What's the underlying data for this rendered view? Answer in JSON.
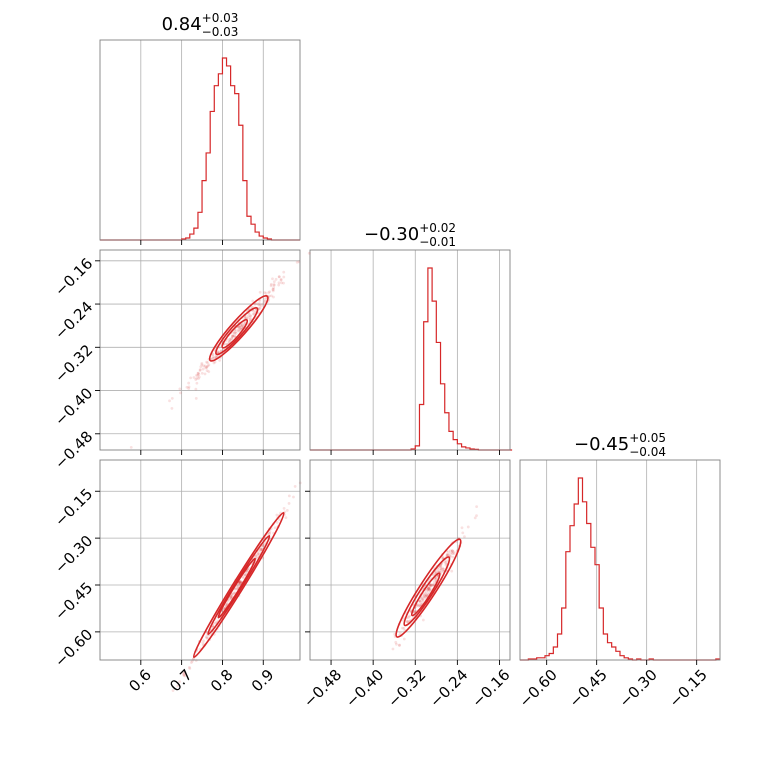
{
  "chart_data": {
    "type": "corner",
    "color": "#d62728",
    "grid": true,
    "panels": [
      {
        "id": "p00",
        "kind": "hist",
        "row": 0,
        "col": 0,
        "xlim": [
          0.5,
          0.99
        ],
        "title": {
          "value": "0.84",
          "plus": "+0.03",
          "minus": "−0.03"
        },
        "bins": {
          "start": 0.5,
          "width": 0.01,
          "heights": [
            0,
            0,
            0,
            0,
            0,
            0,
            0,
            0,
            0,
            0,
            0,
            0,
            0,
            0,
            0,
            0,
            0,
            0,
            0,
            0,
            0.005,
            0.01,
            0.03,
            0.06,
            0.14,
            0.3,
            0.44,
            0.65,
            0.78,
            0.84,
            0.92,
            0.88,
            0.78,
            0.74,
            0.58,
            0.3,
            0.12,
            0.08,
            0.04,
            0.02,
            0.01,
            0.005,
            0,
            0,
            0,
            0,
            0,
            0,
            0
          ]
        },
        "xgrid": [
          0.6,
          0.7,
          0.8,
          0.9
        ]
      },
      {
        "id": "p11",
        "kind": "hist",
        "row": 1,
        "col": 1,
        "xlim": [
          -0.52,
          -0.14
        ],
        "title": {
          "value": "−0.30",
          "plus": "+0.02",
          "minus": "−0.01"
        },
        "bins": {
          "start": -0.52,
          "width": 0.008,
          "heights": [
            0,
            0,
            0,
            0,
            0,
            0,
            0,
            0,
            0,
            0,
            0,
            0,
            0,
            0,
            0,
            0,
            0,
            0,
            0,
            0,
            0,
            0,
            0,
            0,
            0.005,
            0.02,
            0.22,
            0.62,
            0.88,
            0.72,
            0.52,
            0.32,
            0.18,
            0.09,
            0.05,
            0.03,
            0.015,
            0.01,
            0.005,
            0.003,
            0,
            0,
            0,
            0,
            0,
            0,
            0,
            0
          ]
        },
        "xgrid": [
          -0.48,
          -0.4,
          -0.32,
          -0.24,
          -0.16
        ]
      },
      {
        "id": "p22",
        "kind": "hist",
        "row": 2,
        "col": 2,
        "xlim": [
          -0.68,
          -0.08
        ],
        "title": {
          "value": "−0.45",
          "plus": "+0.05",
          "minus": "−0.04"
        },
        "bins": {
          "start": -0.68,
          "width": 0.0125,
          "heights": [
            0,
            0,
            0.005,
            0.005,
            0.01,
            0.01,
            0.02,
            0.03,
            0.06,
            0.12,
            0.24,
            0.5,
            0.62,
            0.72,
            0.84,
            0.73,
            0.63,
            0.52,
            0.44,
            0.24,
            0.12,
            0.08,
            0.06,
            0.04,
            0.02,
            0.01,
            0.005,
            0,
            0.005,
            0,
            0,
            0.005,
            0,
            0,
            0,
            0,
            0,
            0,
            0,
            0,
            0,
            0,
            0,
            0,
            0,
            0,
            0,
            0.005
          ]
        },
        "xgrid": [
          -0.6,
          -0.45,
          -0.3,
          -0.15
        ]
      },
      {
        "id": "p10",
        "kind": "scatter2d",
        "row": 1,
        "col": 0,
        "xlim": [
          0.5,
          0.99
        ],
        "ylim": [
          -0.51,
          -0.14
        ],
        "xgrid": [
          0.6,
          0.7,
          0.8,
          0.9
        ],
        "ygrid": [
          -0.16,
          -0.24,
          -0.32,
          -0.4,
          -0.48
        ],
        "cloud": {
          "center": [
            0.835,
            -0.29
          ],
          "slope": 0.85,
          "spreadX": 0.04,
          "spreadPerp": 0.006
        },
        "contours": [
          [
            0.84,
            -0.285,
            0.07,
            0.012
          ],
          [
            0.835,
            -0.29,
            0.05,
            0.009
          ],
          [
            0.83,
            -0.295,
            0.03,
            0.006
          ]
        ]
      },
      {
        "id": "p20",
        "kind": "scatter2d",
        "row": 2,
        "col": 0,
        "xlim": [
          0.5,
          0.99
        ],
        "ylim": [
          -0.69,
          -0.05
        ],
        "xgrid": [
          0.6,
          0.7,
          0.8,
          0.9
        ],
        "ygrid": [
          -0.15,
          -0.3,
          -0.45,
          -0.6
        ],
        "cloud": {
          "center": [
            0.84,
            -0.45
          ],
          "slope": 2.1,
          "spreadX": 0.04,
          "spreadPerp": 0.008
        },
        "contours": [
          [
            0.84,
            -0.45,
            0.11,
            0.014
          ],
          [
            0.84,
            -0.45,
            0.075,
            0.01
          ],
          [
            0.835,
            -0.46,
            0.045,
            0.007
          ]
        ]
      },
      {
        "id": "p21",
        "kind": "scatter2d",
        "row": 2,
        "col": 1,
        "xlim": [
          -0.52,
          -0.14
        ],
        "ylim": [
          -0.69,
          -0.05
        ],
        "xgrid": [
          -0.48,
          -0.4,
          -0.32,
          -0.24,
          -0.16
        ],
        "ygrid": [
          -0.15,
          -0.3,
          -0.45,
          -0.6
        ],
        "cloud": {
          "center": [
            -0.29,
            -0.45
          ],
          "slope": 2.6,
          "spreadX": 0.018,
          "spreadPerp": 0.012
        },
        "contours": [
          [
            -0.295,
            -0.46,
            0.06,
            0.022
          ],
          [
            -0.298,
            -0.47,
            0.042,
            0.016
          ],
          [
            -0.3,
            -0.48,
            0.026,
            0.01
          ]
        ]
      }
    ],
    "xticks": {
      "col0": [
        "0.6",
        "0.7",
        "0.8",
        "0.9"
      ],
      "col1": [
        "−0.48",
        "−0.40",
        "−0.32",
        "−0.24",
        "−0.16"
      ],
      "col2": [
        "−0.60",
        "−0.45",
        "−0.30",
        "−0.15"
      ]
    },
    "xtick_values": {
      "col0": [
        0.6,
        0.7,
        0.8,
        0.9
      ],
      "col1": [
        -0.48,
        -0.4,
        -0.32,
        -0.24,
        -0.16
      ],
      "col2": [
        -0.6,
        -0.45,
        -0.3,
        -0.15
      ]
    },
    "yticks": {
      "row1": [
        "−0.16",
        "−0.24",
        "−0.32",
        "−0.40",
        "−0.48"
      ],
      "row2": [
        "−0.15",
        "−0.30",
        "−0.45",
        "−0.60"
      ]
    },
    "ytick_values": {
      "row1": [
        -0.16,
        -0.24,
        -0.32,
        -0.4,
        -0.48
      ],
      "row2": [
        -0.15,
        -0.3,
        -0.45,
        -0.6
      ]
    }
  }
}
